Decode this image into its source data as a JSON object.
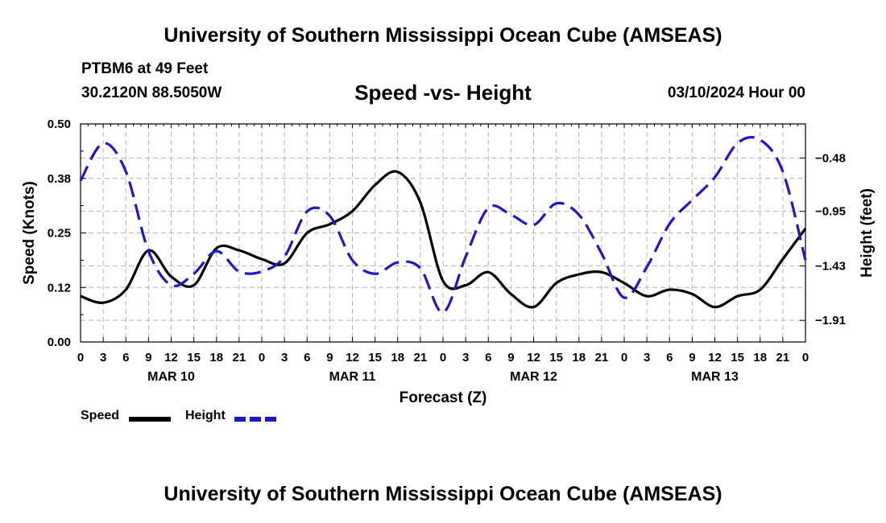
{
  "header": {
    "title": "University of Southern Mississippi Ocean Cube (AMSEAS)",
    "station": "PTBM6 at 49 Feet",
    "coords": "30.2120N  88.5050W",
    "chart_title": "Speed -vs- Height",
    "run_time": "03/10/2024 Hour 00"
  },
  "footer": {
    "title": "University of Southern Mississippi Ocean Cube (AMSEAS)"
  },
  "colors": {
    "speed": "#000000",
    "height": "#1a1acc",
    "grid": "#b4b4b4"
  },
  "chart_data": {
    "type": "line",
    "title": "Speed -vs- Height",
    "xlabel": "Forecast (Z)",
    "ylabel": "Speed (Knots)",
    "y2label": "Height (feet)",
    "x_range": [
      0,
      96
    ],
    "ylim": [
      0,
      0.5
    ],
    "y2lim": [
      -2.1,
      -0.18
    ],
    "yticks": [
      {
        "value": 0.0,
        "label": "0.00"
      },
      {
        "value": 0.125,
        "label": "0.12"
      },
      {
        "value": 0.25,
        "label": "0.25"
      },
      {
        "value": 0.375,
        "label": "0.38"
      },
      {
        "value": 0.5,
        "label": "0.50"
      }
    ],
    "y2ticks": [
      {
        "value": -0.48,
        "label": "−0.48"
      },
      {
        "value": -0.95,
        "label": "−0.95"
      },
      {
        "value": -1.43,
        "label": "−1.43"
      },
      {
        "value": -1.91,
        "label": "−1.91"
      }
    ],
    "xtick_labels": [
      "0",
      "3",
      "6",
      "9",
      "12",
      "15",
      "18",
      "21",
      "0",
      "3",
      "6",
      "9",
      "12",
      "15",
      "18",
      "21",
      "0",
      "3",
      "6",
      "9",
      "12",
      "15",
      "18",
      "21",
      "0",
      "3",
      "6",
      "9",
      "12",
      "15",
      "18",
      "21",
      "0"
    ],
    "days": [
      {
        "label": "MAR 10",
        "center_hour": 12
      },
      {
        "label": "MAR 11",
        "center_hour": 36
      },
      {
        "label": "MAR 12",
        "center_hour": 60
      },
      {
        "label": "MAR 13",
        "center_hour": 84
      }
    ],
    "series": [
      {
        "name": "Speed",
        "axis": "left",
        "style": "solid",
        "x": [
          0,
          3,
          6,
          9,
          12,
          15,
          18,
          21,
          24,
          27,
          30,
          33,
          36,
          39,
          42,
          45,
          48,
          51,
          54,
          57,
          60,
          63,
          66,
          69,
          72,
          75,
          78,
          81,
          84,
          87,
          90,
          93,
          96
        ],
        "values": [
          0.105,
          0.09,
          0.12,
          0.21,
          0.15,
          0.13,
          0.215,
          0.21,
          0.19,
          0.18,
          0.25,
          0.27,
          0.3,
          0.36,
          0.39,
          0.32,
          0.14,
          0.13,
          0.16,
          0.11,
          0.08,
          0.135,
          0.155,
          0.16,
          0.135,
          0.105,
          0.12,
          0.11,
          0.08,
          0.105,
          0.12,
          0.19,
          0.26
        ]
      },
      {
        "name": "Height",
        "axis": "right",
        "style": "dashed",
        "x": [
          0,
          3,
          6,
          9,
          12,
          15,
          18,
          21,
          24,
          27,
          30,
          33,
          36,
          39,
          42,
          45,
          48,
          51,
          54,
          57,
          60,
          63,
          66,
          69,
          72,
          75,
          78,
          81,
          84,
          87,
          90,
          93,
          96
        ],
        "values": [
          -0.68,
          -0.35,
          -0.6,
          -1.3,
          -1.6,
          -1.5,
          -1.3,
          -1.48,
          -1.48,
          -1.35,
          -0.95,
          -0.99,
          -1.38,
          -1.5,
          -1.4,
          -1.45,
          -1.84,
          -1.35,
          -0.92,
          -0.98,
          -1.07,
          -0.88,
          -0.98,
          -1.32,
          -1.71,
          -1.44,
          -1.06,
          -0.85,
          -0.65,
          -0.35,
          -0.32,
          -0.6,
          -1.38
        ]
      }
    ],
    "legend": [
      {
        "name": "Speed",
        "style": "solid"
      },
      {
        "name": "Height",
        "style": "dashed"
      }
    ]
  }
}
